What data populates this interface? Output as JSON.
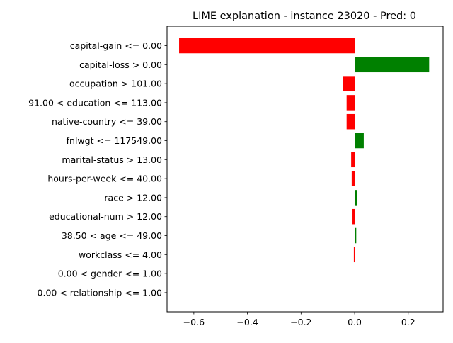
{
  "chart_data": {
    "type": "bar",
    "orientation": "horizontal",
    "title": "LIME explanation - instance 23020 - Pred: 0",
    "xlabel": "",
    "ylabel": "",
    "xlim": [
      -0.7,
      0.33
    ],
    "xticks": [
      -0.6,
      -0.4,
      -0.2,
      0.0,
      0.2
    ],
    "xtick_labels": [
      "−0.6",
      "−0.4",
      "−0.2",
      "0.0",
      "0.2"
    ],
    "grid": false,
    "legend": "none",
    "positive_color": "#008000",
    "negative_color": "#ff0000",
    "categories": [
      "capital-gain <= 0.00",
      "capital-loss > 0.00",
      "occupation > 101.00",
      "91.00 < education <= 113.00",
      "native-country <= 39.00",
      "fnlwgt <= 117549.00",
      "marital-status > 13.00",
      "hours-per-week <= 40.00",
      "race > 12.00",
      "educational-num > 12.00",
      "38.50 < age <= 49.00",
      "workclass <= 4.00",
      "0.00 < gender <= 1.00",
      "0.00 < relationship <= 1.00"
    ],
    "values": [
      -0.655,
      0.278,
      -0.043,
      -0.03,
      -0.03,
      0.034,
      -0.013,
      -0.011,
      0.008,
      -0.008,
      0.006,
      -0.003,
      0.0,
      0.0
    ]
  }
}
